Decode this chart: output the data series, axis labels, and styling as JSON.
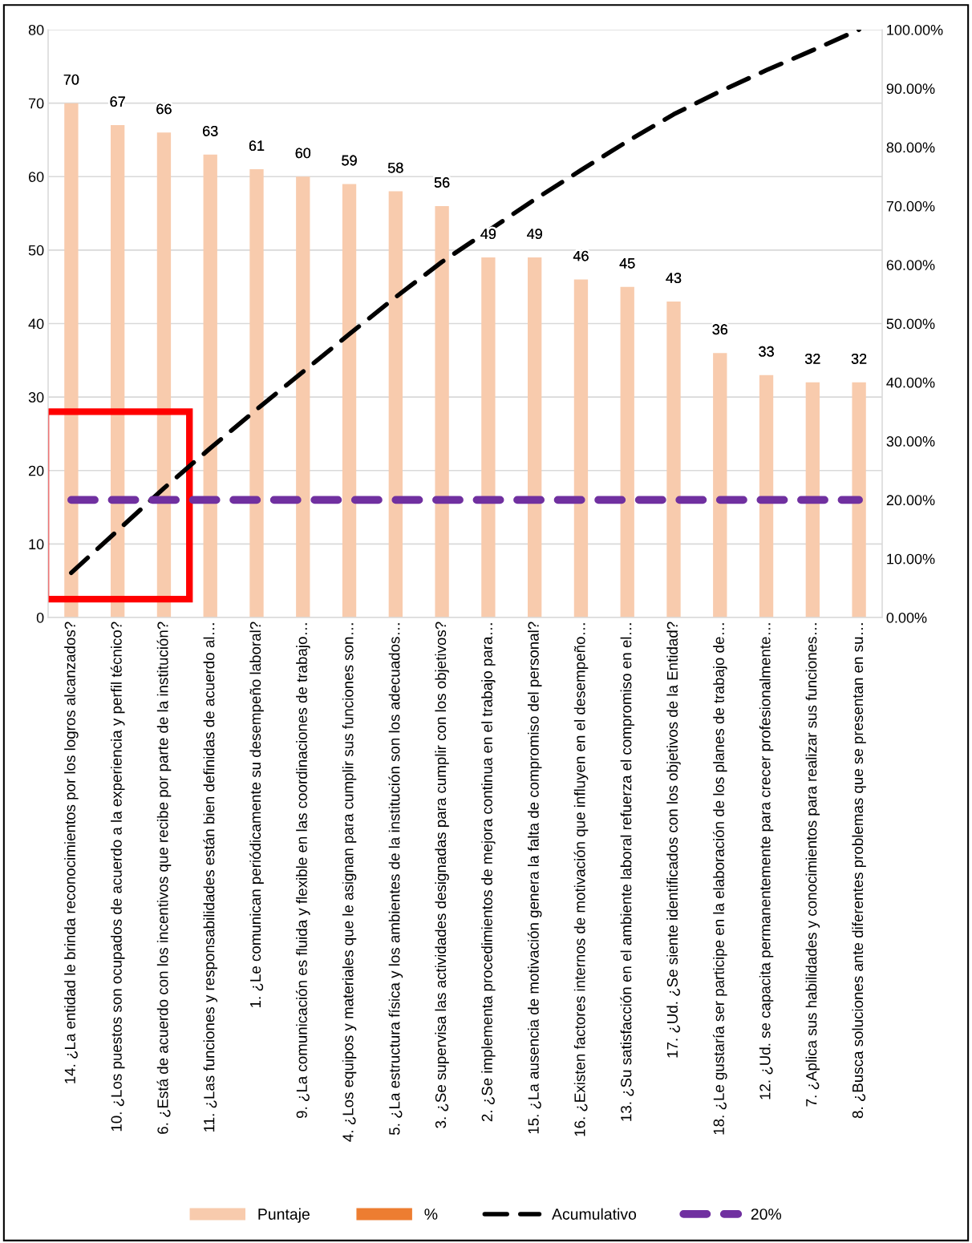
{
  "chart_data": {
    "type": "bar",
    "categories": [
      "14. ¿La entidad le brinda reconocimientos por los logros alcanzados?",
      "10. ¿Los puestos son ocupados de acuerdo a la experiencia y perfil técnico?",
      "6. ¿Está de acuerdo con los incentivos que recibe por parte de la institución?",
      "11. ¿Las funciones y responsabilidades están bien definidas de acuerdo al…",
      "1. ¿Le comunican periódicamente su desempeño laboral?",
      "9. ¿La comunicación es fluida y flexible en las coordinaciones de trabajo…",
      "4. ¿Los equipos y materiales que le asignan para cumplir sus funciones son…",
      "5. ¿La estructura física y los ambientes de la institución son los adecuados…",
      "3. ¿Se supervisa las actividades designadas para cumplir con los objetivos?",
      "2. ¿Se implementa procedimientos de mejora continua en el trabajo para…",
      "15. ¿La ausencia de motivación genera la falta de compromiso del personal?",
      "16. ¿Existen factores internos de motivación que influyen en el desempeño…",
      "13. ¿Su satisfacción en el ambiente laboral refuerza el compromiso en el…",
      "17. ¿Ud. ¿Se siente identificados con los objetivos de la Entidad?",
      "18. ¿Le gustaría ser participe en la elaboración de los planes de trabajo de…",
      "12. ¿Ud. se capacita permanentemente para crecer profesionalmente…",
      "7. ¿Aplica sus habilidades y conocimientos para realizar sus funciones…",
      "8. ¿Busca soluciones ante diferentes problemas que se presentan en su…"
    ],
    "series": [
      {
        "name": "Puntaje",
        "color": "#f8cbad",
        "data_labels": true,
        "values": [
          70,
          67,
          66,
          63,
          61,
          60,
          59,
          58,
          56,
          49,
          49,
          46,
          45,
          43,
          36,
          33,
          32,
          32
        ]
      },
      {
        "name": "%",
        "color": "#ed7d31",
        "values": [
          null,
          null,
          null,
          null,
          null,
          null,
          null,
          null,
          null,
          null,
          null,
          null,
          null,
          null,
          null,
          null,
          null,
          null
        ]
      },
      {
        "name": "Acumulativo",
        "type": "line",
        "axis": "y2",
        "color": "#000000",
        "line_style": "dashed",
        "values": [
          7.6,
          14.8,
          22,
          28.8,
          35.4,
          41.8,
          48.2,
          54.5,
          60.5,
          65.8,
          71.1,
          76.1,
          81,
          85.6,
          89.5,
          93.1,
          96.5,
          100
        ]
      },
      {
        "name": "20%",
        "type": "line",
        "axis": "y2",
        "color": "#7030a0",
        "line_style": "dashed",
        "values": [
          20,
          20,
          20,
          20,
          20,
          20,
          20,
          20,
          20,
          20,
          20,
          20,
          20,
          20,
          20,
          20,
          20,
          20
        ]
      }
    ],
    "ylim": [
      0,
      80
    ],
    "yticks": [
      0,
      10,
      20,
      30,
      40,
      50,
      60,
      70,
      80
    ],
    "y2lim": [
      0,
      100
    ],
    "y2ticks": [
      {
        "value": 0,
        "label": "0.00%"
      },
      {
        "value": 10,
        "label": "10.00%"
      },
      {
        "value": 20,
        "label": "20.00%"
      },
      {
        "value": 30,
        "label": "30.00%"
      },
      {
        "value": 40,
        "label": "40.00%"
      },
      {
        "value": 50,
        "label": "50.00%"
      },
      {
        "value": 60,
        "label": "60.00%"
      },
      {
        "value": 70,
        "label": "70.00%"
      },
      {
        "value": 80,
        "label": "80.00%"
      },
      {
        "value": 90,
        "label": "90.00%"
      },
      {
        "value": 100,
        "label": "100.00%"
      }
    ],
    "grid": "y",
    "legend": "bottom"
  }
}
